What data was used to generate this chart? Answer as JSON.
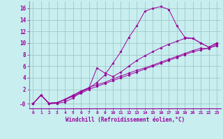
{
  "background_color": "#c8eef0",
  "grid_color": "#a0c8c8",
  "line_color": "#990099",
  "marker": "*",
  "xlabel": "Windchill (Refroidissement éolien,°C)",
  "ylabel_ticks": [
    "-0",
    "2",
    "4",
    "6",
    "8",
    "10",
    "12",
    "14",
    "16"
  ],
  "ytick_vals": [
    -0.5,
    2,
    4,
    6,
    8,
    10,
    12,
    14,
    16
  ],
  "xlim": [
    -0.5,
    23.5
  ],
  "ylim": [
    -1.3,
    17.2
  ],
  "series": [
    [
      -0.5,
      1.0,
      null,
      null,
      null,
      null,
      null,
      null,
      null,
      null,
      null,
      null,
      null,
      13.0,
      15.5,
      16.0,
      16.3,
      15.8,
      13.0,
      11.0,
      10.8,
      null,
      null,
      null
    ],
    [
      -0.5,
      1.0,
      -0.5,
      -0.4,
      -0.2,
      0.5,
      1.5,
      2.2,
      5.7,
      4.8,
      null,
      null,
      null,
      null,
      null,
      null,
      null,
      null,
      null,
      null,
      null,
      10.0,
      9.3,
      10.0
    ],
    [
      -0.5,
      1.0,
      -0.4,
      -0.3,
      0.3,
      1.0,
      1.7,
      2.3,
      2.8,
      3.2,
      3.8,
      4.3,
      4.8,
      5.3,
      5.7,
      6.2,
      6.7,
      7.2,
      7.7,
      8.2,
      8.7,
      9.1,
      9.0,
      9.8
    ],
    [
      -0.5,
      1.0,
      -0.4,
      -0.3,
      0.2,
      0.8,
      1.3,
      2.0,
      2.5,
      3.0,
      3.5,
      4.0,
      4.5,
      5.0,
      5.5,
      6.0,
      6.5,
      7.0,
      7.5,
      8.0,
      8.5,
      8.8,
      9.2,
      9.5
    ]
  ],
  "series_full": [
    [
      -0.5,
      1.0,
      -0.4,
      -0.3,
      0.2,
      0.9,
      1.6,
      2.2,
      3.2,
      4.5,
      6.5,
      8.5,
      11.0,
      13.0,
      15.5,
      16.0,
      16.3,
      15.8,
      13.0,
      11.0,
      10.8,
      10.0,
      9.3,
      10.0
    ],
    [
      -0.5,
      1.0,
      -0.5,
      -0.4,
      -0.2,
      0.5,
      1.5,
      2.2,
      5.7,
      4.8,
      4.2,
      5.0,
      6.0,
      7.0,
      7.8,
      8.5,
      9.2,
      9.8,
      10.3,
      10.8,
      10.8,
      10.0,
      9.3,
      10.0
    ],
    [
      -0.5,
      1.0,
      -0.4,
      -0.3,
      0.3,
      1.0,
      1.7,
      2.3,
      2.8,
      3.2,
      3.8,
      4.3,
      4.8,
      5.3,
      5.7,
      6.2,
      6.7,
      7.2,
      7.7,
      8.2,
      8.7,
      9.1,
      9.0,
      9.8
    ],
    [
      -0.5,
      1.0,
      -0.4,
      -0.3,
      0.2,
      0.8,
      1.3,
      2.0,
      2.5,
      3.0,
      3.5,
      4.0,
      4.5,
      5.0,
      5.5,
      6.0,
      6.5,
      7.0,
      7.5,
      8.0,
      8.5,
      8.8,
      9.2,
      9.5
    ]
  ],
  "xtick_labels": [
    "0",
    "1",
    "2",
    "3",
    "4",
    "5",
    "6",
    "7",
    "8",
    "9",
    "10",
    "11",
    "12",
    "13",
    "14",
    "15",
    "16",
    "17",
    "18",
    "19",
    "20",
    "21",
    "22",
    "23"
  ],
  "left_spine_color": "#7799aa",
  "bottom_spine_color": "#990099"
}
